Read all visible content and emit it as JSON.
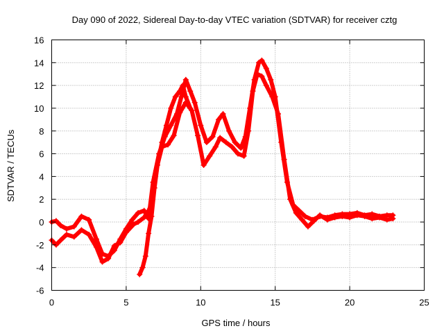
{
  "chart_data": {
    "type": "line",
    "title": "Day 090 of 2022, Sidereal Day-to-day VTEC variation (SDTVAR) for receiver cztg",
    "xlabel": "GPS time / hours",
    "ylabel": "SDTVAR / TECUs",
    "xlim": [
      0,
      25
    ],
    "ylim": [
      -6,
      16
    ],
    "xticks": [
      0,
      5,
      10,
      15,
      20,
      25
    ],
    "yticks": [
      -6,
      -4,
      -2,
      0,
      2,
      4,
      6,
      8,
      10,
      12,
      14,
      16
    ],
    "grid": true,
    "marker": "plus",
    "color": "#ff0000",
    "series": [
      {
        "name": "SDTVAR",
        "x": [
          0.0,
          0.3,
          0.6,
          1.0,
          1.5,
          2.0,
          2.5,
          3.0,
          3.4,
          3.8,
          4.2,
          4.6,
          5.0,
          5.4,
          5.8,
          6.2,
          6.5,
          6.8,
          7.2,
          7.6,
          8.0,
          8.4,
          8.7,
          9.0,
          9.3,
          9.6,
          10.0,
          10.4,
          10.8,
          11.2,
          11.5,
          11.9,
          12.3,
          12.7,
          13.0,
          13.3,
          13.6,
          13.9,
          14.1,
          14.4,
          14.7,
          15.0,
          15.4,
          15.8,
          16.2,
          16.6,
          17.0,
          17.5,
          18.0,
          18.5,
          19.0,
          19.5,
          20.0,
          20.5,
          21.0,
          21.5,
          22.0,
          22.5,
          22.9
        ],
        "y": [
          0.0,
          0.1,
          -0.3,
          -0.6,
          -0.4,
          0.5,
          0.2,
          -1.5,
          -2.8,
          -3.0,
          -2.5,
          -1.5,
          -0.6,
          0.2,
          0.8,
          1.0,
          0.3,
          3.5,
          6.0,
          7.5,
          8.5,
          9.5,
          11.0,
          12.5,
          11.5,
          10.5,
          8.5,
          7.0,
          7.5,
          9.0,
          9.5,
          8.0,
          7.0,
          6.5,
          7.5,
          10.0,
          12.5,
          14.0,
          14.2,
          13.5,
          12.5,
          11.0,
          7.0,
          3.5,
          1.5,
          1.0,
          0.5,
          0.2,
          0.5,
          0.4,
          0.6,
          0.7,
          0.7,
          0.8,
          0.6,
          0.7,
          0.5,
          0.6,
          0.6
        ]
      },
      {
        "name": "SDTVAR",
        "x": [
          0.0,
          0.3,
          0.6,
          1.0,
          1.5,
          2.0,
          2.5,
          3.0,
          3.4,
          3.8,
          4.2,
          4.6,
          5.0,
          5.5,
          5.8,
          6.2,
          6.6,
          7.0,
          7.4,
          7.8,
          8.2,
          8.6,
          9.0,
          9.4,
          9.8,
          10.2,
          10.6,
          11.0,
          11.3,
          11.7,
          12.1,
          12.5,
          12.9,
          13.2,
          13.5,
          13.8,
          14.1,
          14.4,
          14.8,
          15.2,
          15.6,
          16.0,
          16.4,
          16.8,
          17.2,
          17.6,
          18.0,
          18.5,
          19.0,
          19.5,
          20.0,
          20.5,
          21.0,
          21.5,
          22.0,
          22.5,
          22.9
        ],
        "y": [
          -1.6,
          -2.0,
          -1.6,
          -1.1,
          -1.3,
          -0.7,
          -1.1,
          -2.2,
          -3.5,
          -3.2,
          -2.1,
          -1.8,
          -0.9,
          -0.2,
          0.0,
          0.4,
          1.2,
          4.5,
          6.6,
          6.8,
          7.6,
          9.6,
          10.5,
          9.8,
          7.6,
          5.0,
          5.8,
          6.6,
          7.4,
          7.0,
          6.6,
          6.0,
          5.8,
          8.0,
          11.5,
          13.0,
          12.8,
          12.0,
          11.0,
          9.5,
          5.5,
          2.0,
          0.8,
          0.2,
          -0.4,
          0.1,
          0.6,
          0.2,
          0.4,
          0.5,
          0.4,
          0.6,
          0.5,
          0.3,
          0.4,
          0.2,
          0.3
        ]
      },
      {
        "name": "SDTVAR",
        "x": [
          5.9,
          6.1,
          6.3,
          6.5,
          6.7,
          6.9,
          7.1,
          7.4,
          7.7,
          8.0,
          8.3,
          8.6,
          8.8,
          9.0,
          9.3
        ],
        "y": [
          -4.6,
          -4.0,
          -3.0,
          -1.0,
          0.5,
          3.0,
          5.0,
          7.0,
          8.5,
          10.0,
          11.0,
          11.5,
          12.0,
          11.0,
          10.0
        ]
      }
    ]
  }
}
